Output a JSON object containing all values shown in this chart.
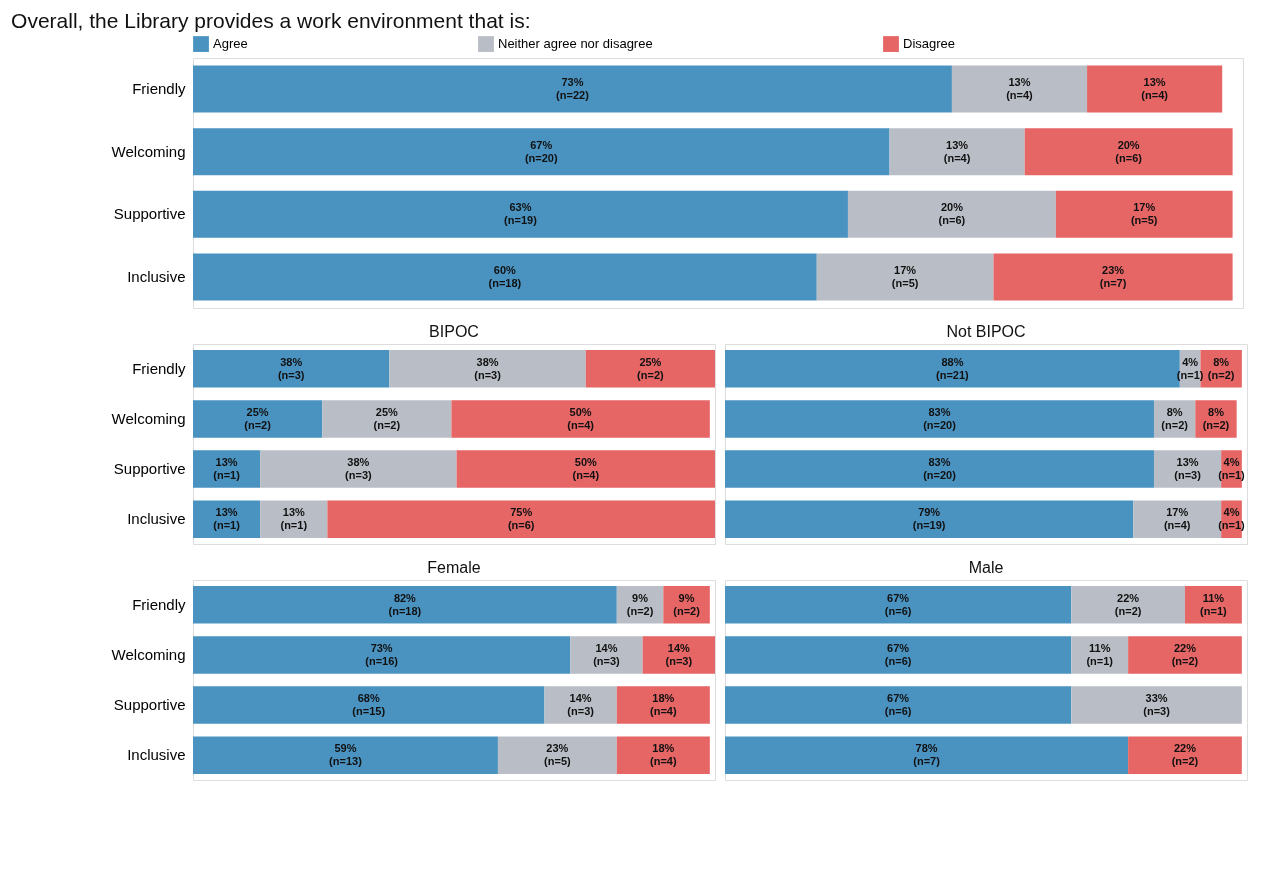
{
  "chart_data": [
    {
      "type": "bar",
      "orientation": "horizontal",
      "stacked": true,
      "title": "Overall, the Library provides a work environment that is:",
      "categories": [
        "Friendly",
        "Welcoming",
        "Supportive",
        "Inclusive"
      ],
      "xlim": [
        0,
        101
      ],
      "tick_labels": "y",
      "legend": "top",
      "series": [
        {
          "name": "Agree",
          "color": "#4a93c1",
          "values": [
            73,
            67,
            63,
            60
          ],
          "value_labels": [
            "73%\n(n=22)",
            "67%\n(n=20)",
            "63%\n(n=19)",
            "60%\n(n=18)"
          ]
        },
        {
          "name": "Neither agree nor disagree",
          "color": "#b9bec6",
          "values": [
            13,
            13,
            20,
            17
          ],
          "value_labels": [
            "13%\n(n=4)",
            "13%\n(n=4)",
            "20%\n(n=6)",
            "17%\n(n=5)"
          ]
        },
        {
          "name": "Disagree",
          "color": "#e66565",
          "values": [
            13,
            20,
            17,
            23
          ],
          "value_labels": [
            "13%\n(n=4)",
            "20%\n(n=6)",
            "17%\n(n=5)",
            "23%\n(n=7)"
          ]
        }
      ]
    },
    {
      "type": "bar",
      "orientation": "horizontal",
      "stacked": true,
      "title": "BIPOC",
      "categories": [
        "Friendly",
        "Welcoming",
        "Supportive",
        "Inclusive"
      ],
      "xlim": [
        0,
        101
      ],
      "tick_labels": "y",
      "series": [
        {
          "color": "#4a93c1",
          "values": [
            38,
            25,
            13,
            13
          ],
          "value_labels": [
            "38%\n(n=3)",
            "25%\n(n=2)",
            "13%\n(n=1)",
            "13%\n(n=1)"
          ]
        },
        {
          "color": "#b9bec6",
          "values": [
            38,
            25,
            38,
            13
          ],
          "value_labels": [
            "38%\n(n=3)",
            "25%\n(n=2)",
            "38%\n(n=3)",
            "13%\n(n=1)"
          ]
        },
        {
          "color": "#e66565",
          "values": [
            25,
            50,
            50,
            75
          ],
          "value_labels": [
            "25%\n(n=2)",
            "50%\n(n=4)",
            "50%\n(n=4)",
            "75%\n(n=6)"
          ]
        }
      ]
    },
    {
      "type": "bar",
      "orientation": "horizontal",
      "stacked": true,
      "title": "Not BIPOC",
      "categories": [
        null,
        null,
        null,
        null
      ],
      "xlim": [
        0,
        101
      ],
      "tick_labels": false,
      "series": [
        {
          "color": "#4a93c1",
          "values": [
            88,
            83,
            83,
            79
          ],
          "value_labels": [
            "88%\n(n=21)",
            "83%\n(n=20)",
            "83%\n(n=20)",
            "79%\n(n=19)"
          ]
        },
        {
          "color": "#b9bec6",
          "values": [
            4,
            8,
            13,
            17
          ],
          "value_labels": [
            "4%\n(n=1)",
            "8%\n(n=2)",
            "13%\n(n=3)",
            "17%\n(n=4)"
          ]
        },
        {
          "color": "#e66565",
          "values": [
            8,
            8,
            4,
            4
          ],
          "value_labels": [
            "8%\n(n=2)",
            "8%\n(n=2)",
            "4%\n(n=1)",
            "4%\n(n=1)"
          ]
        }
      ]
    },
    {
      "type": "bar",
      "orientation": "horizontal",
      "stacked": true,
      "title": "Female",
      "categories": [
        "Friendly",
        "Welcoming",
        "Supportive",
        "Inclusive"
      ],
      "xlim": [
        0,
        101
      ],
      "tick_labels": "y",
      "series": [
        {
          "color": "#4a93c1",
          "values": [
            82,
            73,
            68,
            59
          ],
          "value_labels": [
            "82%\n(n=18)",
            "73%\n(n=16)",
            "68%\n(n=15)",
            "59%\n(n=13)"
          ]
        },
        {
          "color": "#b9bec6",
          "values": [
            9,
            14,
            14,
            23
          ],
          "value_labels": [
            "9%\n(n=2)",
            "14%\n(n=3)",
            "14%\n(n=3)",
            "23%\n(n=5)"
          ]
        },
        {
          "color": "#e66565",
          "values": [
            9,
            14,
            18,
            18
          ],
          "value_labels": [
            "9%\n(n=2)",
            "14%\n(n=3)",
            "18%\n(n=4)",
            "18%\n(n=4)"
          ]
        }
      ]
    },
    {
      "type": "bar",
      "orientation": "horizontal",
      "stacked": true,
      "title": "Male",
      "categories": [
        null,
        null,
        null,
        null
      ],
      "xlim": [
        0,
        101
      ],
      "tick_labels": false,
      "series": [
        {
          "color": "#4a93c1",
          "values": [
            67,
            67,
            67,
            78
          ],
          "value_labels": [
            "67%\n(n=6)",
            "67%\n(n=6)",
            "67%\n(n=6)",
            "78%\n(n=7)"
          ]
        },
        {
          "color": "#b9bec6",
          "values": [
            22,
            11,
            33,
            null
          ],
          "value_labels": [
            "22%\n(n=2)",
            "11%\n(n=1)",
            "33%\n(n=3)",
            null
          ]
        },
        {
          "color": "#e66565",
          "values": [
            11,
            22,
            null,
            22
          ],
          "value_labels": [
            "11%\n(n=1)",
            "22%\n(n=2)",
            null,
            "22%\n(n=2)"
          ]
        }
      ]
    }
  ]
}
